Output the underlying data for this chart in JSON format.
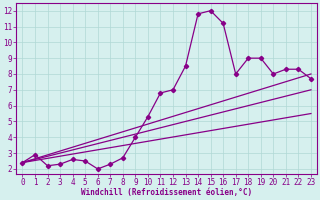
{
  "xlabel": "Windchill (Refroidissement éolien,°C)",
  "xlim": [
    -0.5,
    23.5
  ],
  "ylim": [
    1.7,
    12.5
  ],
  "xticks": [
    0,
    1,
    2,
    3,
    4,
    5,
    6,
    7,
    8,
    9,
    10,
    11,
    12,
    13,
    14,
    15,
    16,
    17,
    18,
    19,
    20,
    21,
    22,
    23
  ],
  "yticks": [
    2,
    3,
    4,
    5,
    6,
    7,
    8,
    9,
    10,
    11,
    12
  ],
  "bg_color": "#d6f0ee",
  "grid_color": "#b0d8d5",
  "line_color": "#880088",
  "series1_x": [
    0,
    1,
    2,
    3,
    4,
    5,
    6,
    7,
    8,
    9,
    10,
    11,
    12,
    13,
    14,
    15,
    16,
    17,
    18,
    19,
    20,
    21,
    22,
    23
  ],
  "series1_y": [
    2.4,
    2.9,
    2.2,
    2.3,
    2.6,
    2.5,
    2.0,
    2.3,
    2.7,
    4.0,
    5.3,
    6.8,
    7.0,
    8.5,
    11.8,
    12.0,
    11.2,
    8.0,
    9.0,
    9.0,
    8.0,
    8.3,
    8.3,
    7.7
  ],
  "trend1_end_y": 8.0,
  "trend2_end_y": 7.0,
  "trend3_end_y": 5.5,
  "trend_start_y": 2.4,
  "tick_fontsize": 5.5,
  "xlabel_fontsize": 5.5
}
